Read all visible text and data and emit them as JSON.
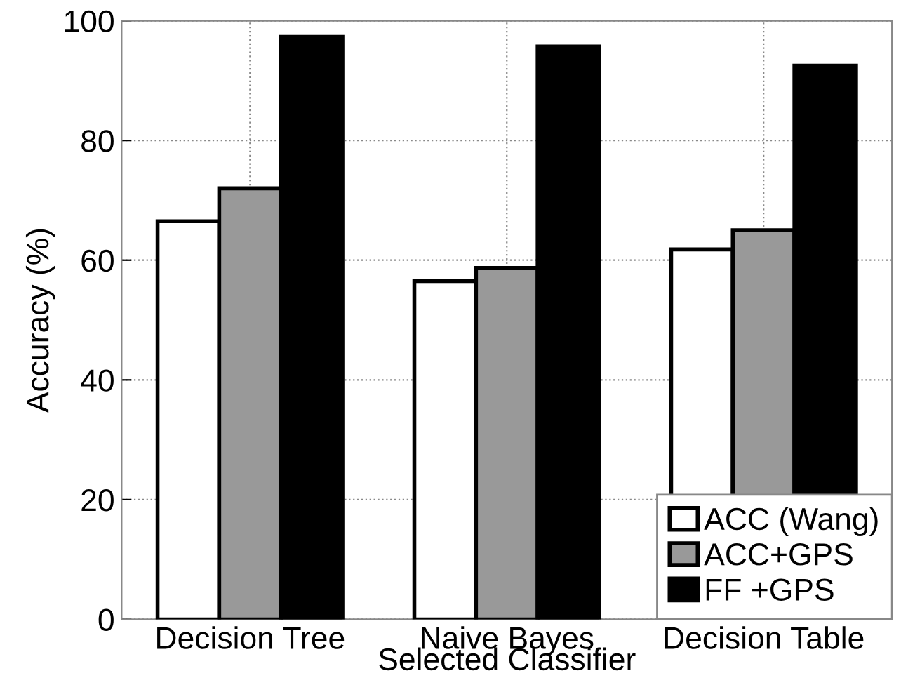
{
  "chart_data": {
    "type": "bar",
    "xlabel": "Selected Classifier",
    "ylabel": "Accuracy (%)",
    "categories": [
      "Decision Tree",
      "Naive Bayes",
      "Decision Table"
    ],
    "series": [
      {
        "name": "ACC (Wang)",
        "color": "#ffffff",
        "values": [
          66.5,
          56.5,
          61.8
        ]
      },
      {
        "name": "ACC+GPS",
        "color": "#999999",
        "values": [
          72.0,
          58.7,
          65.0
        ]
      },
      {
        "name": "FF +GPS",
        "color": "#000000",
        "values": [
          97.3,
          95.7,
          92.5
        ]
      }
    ],
    "ylim": [
      0,
      100
    ],
    "yticks": [
      0,
      20,
      40,
      60,
      80,
      100
    ],
    "grid": true,
    "legend": "bottom right"
  }
}
